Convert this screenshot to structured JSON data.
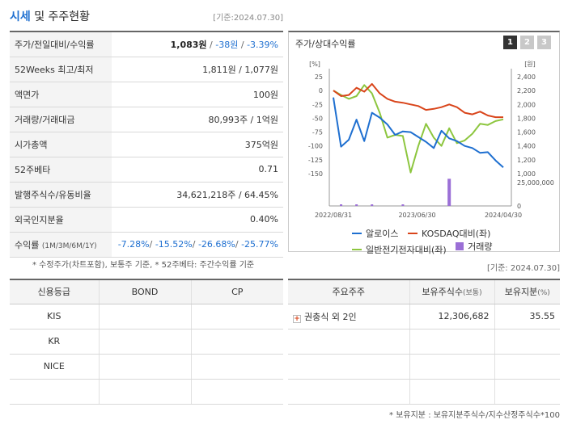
{
  "header": {
    "title_accent": "시세",
    "title_rest": " 및 주주현황",
    "date": "[기준:2024.07.30]"
  },
  "info_rows": [
    {
      "label": "주가/전일대비/수익률",
      "price": "1,083원",
      "change": "-38원",
      "rate": "-3.39%"
    },
    {
      "label": "52Weeks 최고/최저",
      "value": "1,811원 / 1,077원"
    },
    {
      "label": "액면가",
      "value": "100원"
    },
    {
      "label": "거래량/거래대금",
      "value": "80,993주 / 1억원"
    },
    {
      "label": "시가총액",
      "value": "375억원"
    },
    {
      "label": "52주베타",
      "value": "0.71"
    },
    {
      "label": "발행주식수/유동비율",
      "value": "34,621,218주 / 64.45%"
    },
    {
      "label": "외국인지분율",
      "value": "0.40%"
    },
    {
      "label": "수익률",
      "label_sub": "(1M/3M/6M/1Y)",
      "r1": "-7.28%",
      "r2": "-15.52%",
      "r3": "-26.68%",
      "r4": "-25.77%"
    }
  ],
  "note_left": "* 수정주가(차트포함), 보통주 기준, * 52주베타: 주간수익률 기준",
  "chart_panel": {
    "title": "주가/상대수익률",
    "tabs": [
      "1",
      "2",
      "3"
    ],
    "active_tab": 0
  },
  "chart_data": {
    "type": "line",
    "left_axis": {
      "unit": "[%]",
      "ticks": [
        25,
        0,
        -25,
        -50,
        -75,
        -100,
        -125,
        -150
      ],
      "ylim": [
        -150,
        25
      ]
    },
    "right_axis": {
      "unit": "[원]",
      "ticks": [
        "2,400",
        "2,200",
        "2,000",
        "1,800",
        "1,600",
        "1,400",
        "1,200",
        "1,000"
      ],
      "ylim": [
        1000,
        2400
      ]
    },
    "volume_axis": {
      "ticks": [
        "25,000,000",
        "0"
      ],
      "ylim": [
        0,
        25000000
      ]
    },
    "x_ticks": [
      "2022/08/31",
      "2023/06/30",
      "2024/04/30"
    ],
    "series": [
      {
        "name": "알로이스",
        "color": "#1e6fd0",
        "values": [
          2100,
          1390,
          1490,
          1780,
          1470,
          1880,
          1810,
          1710,
          1560,
          1610,
          1600,
          1530,
          1460,
          1370,
          1620,
          1510,
          1470,
          1400,
          1370,
          1300,
          1310,
          1190,
          1090
        ]
      },
      {
        "name": "KOSDAQ대비(좌)",
        "color": "#d9451b",
        "values": [
          0,
          -10,
          -8,
          5,
          -2,
          12,
          -5,
          -15,
          -20,
          -22,
          -25,
          -28,
          -35,
          -33,
          -30,
          -25,
          -30,
          -40,
          -43,
          -38,
          -45,
          -48,
          -48
        ]
      },
      {
        "name": "일반전기전자대비(좌)",
        "color": "#8dc63f",
        "values": [
          0,
          -8,
          -15,
          -10,
          10,
          -5,
          -40,
          -85,
          -80,
          -82,
          -148,
          -100,
          -60,
          -85,
          -100,
          -68,
          -95,
          -90,
          -78,
          -60,
          -62,
          -55,
          -52
        ]
      },
      {
        "name": "거래량",
        "color": "#9b6fd6",
        "bars": [
          0,
          0,
          0,
          0,
          0,
          0,
          0,
          0,
          0,
          0,
          0,
          0,
          0,
          0,
          0,
          29000000,
          0,
          0,
          0,
          0,
          0,
          0,
          0
        ]
      }
    ],
    "legend": [
      "알로이스",
      "KOSDAQ대비(좌)",
      "일반전기전자대비(좌)",
      "거래량"
    ]
  },
  "date_right": "[기준: 2024.07.30]",
  "credit": {
    "headers": [
      "신용등급",
      "BOND",
      "CP"
    ],
    "rows": [
      {
        "agency": "KIS",
        "bond": "",
        "cp": ""
      },
      {
        "agency": "KR",
        "bond": "",
        "cp": ""
      },
      {
        "agency": "NICE",
        "bond": "",
        "cp": ""
      },
      {
        "agency": "",
        "bond": "",
        "cp": ""
      }
    ]
  },
  "holders": {
    "headers": [
      "주요주주",
      "보유주식수",
      "(보통)",
      "보유지분",
      "(%)"
    ],
    "rows": [
      {
        "name": "권충식 외 2인",
        "shares": "12,306,682",
        "pct": "35.55"
      },
      {
        "name": "",
        "shares": "",
        "pct": ""
      },
      {
        "name": "",
        "shares": "",
        "pct": ""
      },
      {
        "name": "",
        "shares": "",
        "pct": ""
      }
    ]
  },
  "note_right": "* 보유지분 : 보유지분주식수/지수산정주식수*100"
}
